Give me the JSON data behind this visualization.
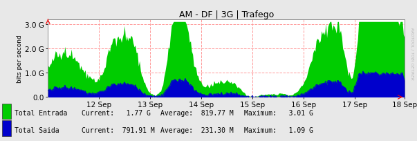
{
  "title": "AM - DF | 3G | Trafego",
  "ylabel": "bits per second",
  "background_color": "#e8e8e8",
  "plot_bg_color": "#ffffff",
  "grid_color": "#ff9999",
  "ymax": 3200000000.0,
  "yticks": [
    0.0,
    1000000000.0,
    2000000000.0,
    3000000000.0
  ],
  "xtick_labels": [
    "12 Sep",
    "13 Sep",
    "14 Sep",
    "15 Sep",
    "16 Sep",
    "17 Sep",
    "18 Sep"
  ],
  "entrada_color": "#00cc00",
  "saida_color": "#0000cc",
  "legend_entrada": "Total Entrada",
  "legend_saida": "Total Saida",
  "current_entrada": "1.77 G",
  "avg_entrada": "819.77 M",
  "max_entrada": "3.01 G",
  "current_saida": "791.91 M",
  "avg_saida": "231.30 M",
  "max_saida": "1.09 G",
  "watermark": "RRDTOOL / TOBI OETIKER",
  "n_points": 336,
  "seed": 42
}
